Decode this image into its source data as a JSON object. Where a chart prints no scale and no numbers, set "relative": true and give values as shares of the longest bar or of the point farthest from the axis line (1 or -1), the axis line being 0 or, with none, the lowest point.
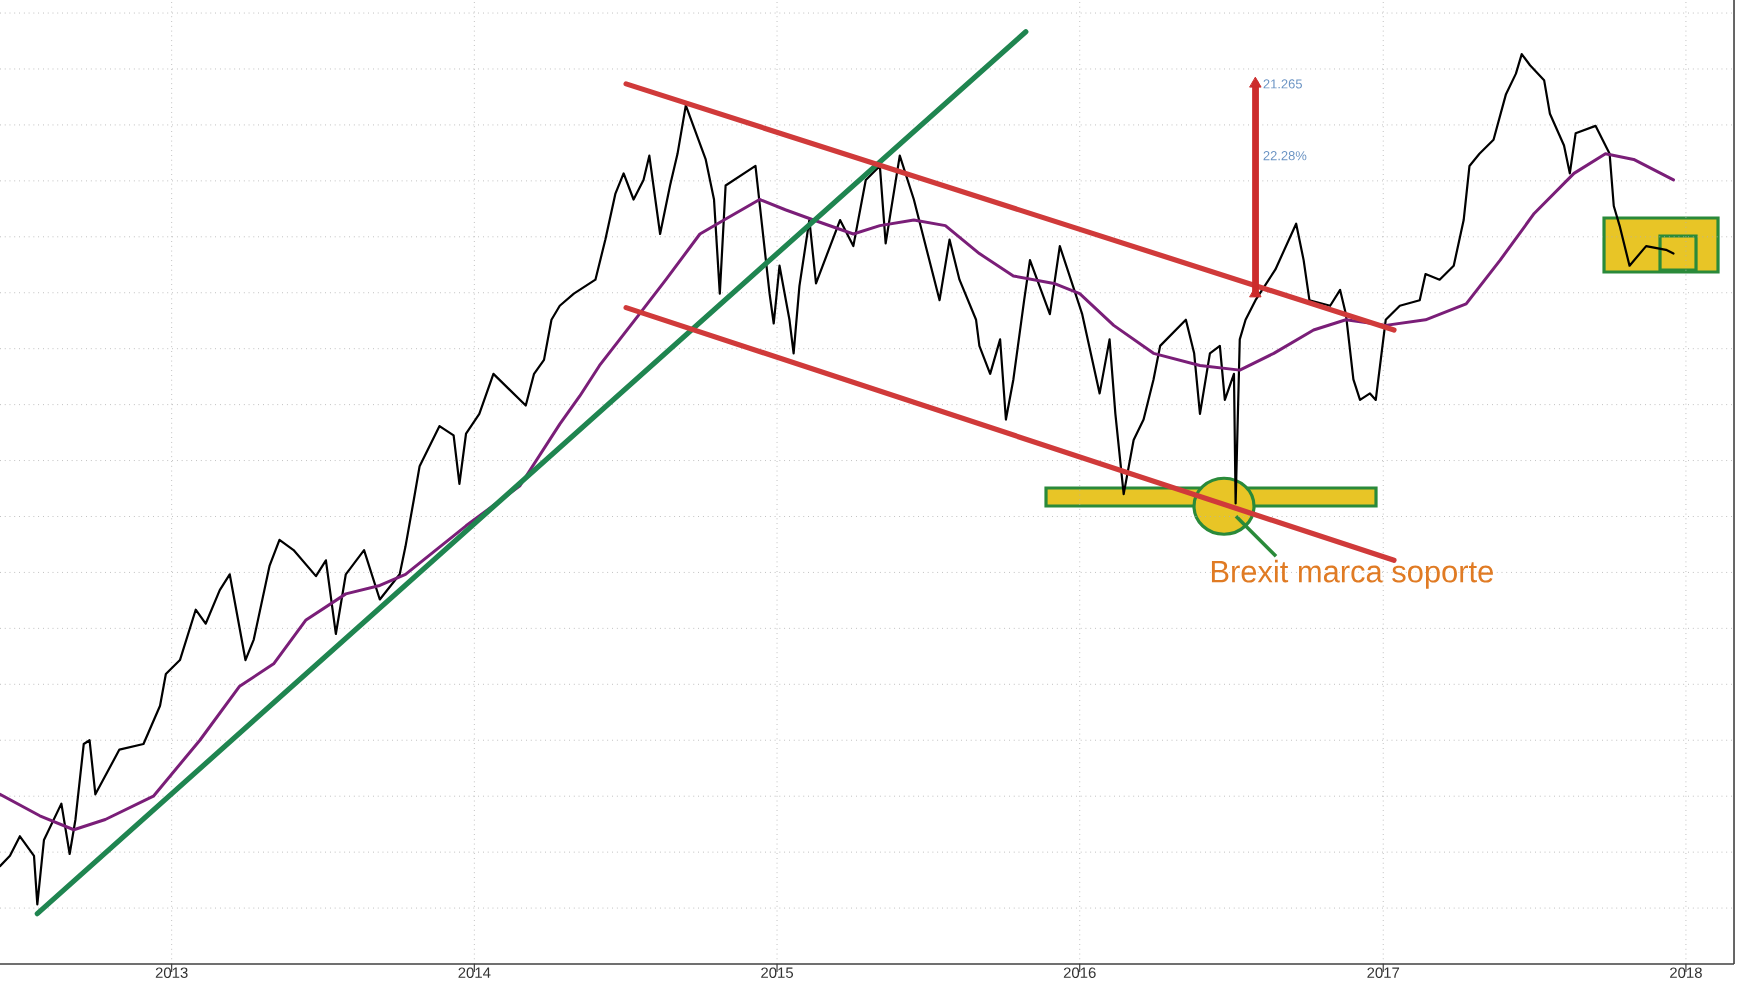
{
  "chart_data": {
    "type": "line",
    "relative": true,
    "xlim": [
      "2012-06-08",
      "2018-02-28"
    ],
    "xticks": [
      "2013",
      "2014",
      "2015",
      "2016",
      "2017",
      "2018"
    ],
    "grid": true,
    "annotations": [
      {
        "text": "21.265",
        "x": "2016-07-31",
        "y": 0.944
      },
      {
        "text": "22.28%",
        "x": "2016-07-31",
        "y": 0.867
      },
      {
        "text": "Brexit marca soporte",
        "x": "2016-06-23",
        "y": 0.491
      }
    ],
    "series": [
      {
        "color": "#000000",
        "x": [
          "2012-06-08",
          "2012-06-20",
          "2012-07-02",
          "2012-07-19",
          "2012-07-23",
          "2012-07-31",
          "2012-08-21",
          "2012-08-31",
          "2012-09-07",
          "2012-09-17",
          "2012-09-24",
          "2012-10-01",
          "2012-10-30",
          "2012-11-28",
          "2012-12-18",
          "2012-12-25",
          "2013-01-11",
          "2013-01-30",
          "2013-02-11",
          "2013-02-28",
          "2013-03-12",
          "2013-03-31",
          "2013-04-10",
          "2013-04-29",
          "2013-05-11",
          "2013-05-28",
          "2013-06-24",
          "2013-07-06",
          "2013-07-18",
          "2013-07-30",
          "2013-08-21",
          "2013-09-09",
          "2013-10-03",
          "2013-10-10",
          "2013-10-20",
          "2013-10-27",
          "2013-11-20",
          "2013-12-07",
          "2013-12-14",
          "2013-12-22",
          "2014-01-07",
          "2014-01-24",
          "2014-03-04",
          "2014-03-14",
          "2014-03-26",
          "2014-04-04",
          "2014-04-14",
          "2014-05-01",
          "2014-05-27",
          "2014-06-08",
          "2014-06-20",
          "2014-06-30",
          "2014-07-12",
          "2014-07-24",
          "2014-07-31",
          "2014-08-13",
          "2014-08-25",
          "2014-09-03",
          "2014-09-13",
          "2014-10-07",
          "2014-10-17",
          "2014-10-24",
          "2014-10-31",
          "2014-12-06",
          "2014-12-23",
          "2014-12-28",
          "2015-01-04",
          "2015-01-16",
          "2015-01-21",
          "2015-01-28",
          "2015-02-09",
          "2015-02-17",
          "2015-03-18",
          "2015-04-03",
          "2015-04-18",
          "2015-05-05",
          "2015-05-12",
          "2015-05-29",
          "2015-06-15",
          "2015-07-16",
          "2015-07-28",
          "2015-08-09",
          "2015-08-29",
          "2015-09-02",
          "2015-09-15",
          "2015-09-27",
          "2015-10-04",
          "2015-10-13",
          "2015-10-26",
          "2015-11-02",
          "2015-11-26",
          "2015-12-08",
          "2016-01-04",
          "2016-01-25",
          "2016-02-06",
          "2016-02-13",
          "2016-02-23",
          "2016-03-06",
          "2016-03-18",
          "2016-03-30",
          "2016-04-07",
          "2016-05-08",
          "2016-05-18",
          "2016-05-25",
          "2016-06-06",
          "2016-06-18",
          "2016-06-24",
          "2016-07-05",
          "2016-07-07",
          "2016-07-12",
          "2016-07-19",
          "2016-07-31",
          "2016-08-24",
          "2016-09-18",
          "2016-09-27",
          "2016-10-04",
          "2016-10-29",
          "2016-11-10",
          "2016-11-17",
          "2016-11-26",
          "2016-12-04",
          "2016-12-16",
          "2016-12-23",
          "2017-01-04",
          "2017-01-21",
          "2017-02-14",
          "2017-02-21",
          "2017-03-10",
          "2017-03-27",
          "2017-04-08",
          "2017-04-15",
          "2017-04-27",
          "2017-05-14",
          "2017-05-29",
          "2017-06-10",
          "2017-06-17",
          "2017-06-27",
          "2017-07-14",
          "2017-07-21",
          "2017-08-07",
          "2017-08-14",
          "2017-08-21",
          "2017-09-14",
          "2017-10-01",
          "2017-10-06",
          "2017-10-13",
          "2017-10-25",
          "2017-11-14",
          "2017-12-08",
          "2017-12-17"
        ],
        "values": [
          0.105,
          0.116,
          0.137,
          0.116,
          0.064,
          0.133,
          0.172,
          0.118,
          0.155,
          0.236,
          0.24,
          0.182,
          0.23,
          0.236,
          0.277,
          0.311,
          0.326,
          0.38,
          0.365,
          0.401,
          0.418,
          0.326,
          0.348,
          0.427,
          0.455,
          0.444,
          0.416,
          0.433,
          0.354,
          0.418,
          0.444,
          0.391,
          0.418,
          0.448,
          0.498,
          0.534,
          0.577,
          0.567,
          0.515,
          0.569,
          0.59,
          0.633,
          0.599,
          0.633,
          0.648,
          0.691,
          0.706,
          0.719,
          0.734,
          0.777,
          0.826,
          0.848,
          0.82,
          0.841,
          0.867,
          0.783,
          0.835,
          0.869,
          0.921,
          0.863,
          0.82,
          0.719,
          0.835,
          0.856,
          0.719,
          0.687,
          0.749,
          0.691,
          0.655,
          0.727,
          0.798,
          0.73,
          0.798,
          0.77,
          0.841,
          0.856,
          0.773,
          0.867,
          0.82,
          0.712,
          0.777,
          0.734,
          0.691,
          0.663,
          0.633,
          0.67,
          0.584,
          0.627,
          0.712,
          0.755,
          0.697,
          0.77,
          0.697,
          0.612,
          0.67,
          0.59,
          0.504,
          0.562,
          0.584,
          0.627,
          0.663,
          0.691,
          0.655,
          0.59,
          0.655,
          0.663,
          0.605,
          0.633,
          0.494,
          0.67,
          0.691,
          0.712,
          0.745,
          0.794,
          0.755,
          0.712,
          0.706,
          0.723,
          0.697,
          0.627,
          0.605,
          0.612,
          0.605,
          0.691,
          0.706,
          0.712,
          0.74,
          0.734,
          0.749,
          0.798,
          0.856,
          0.869,
          0.884,
          0.933,
          0.955,
          0.976,
          0.964,
          0.948,
          0.912,
          0.878,
          0.848,
          0.891,
          0.899,
          0.869,
          0.813,
          0.792,
          0.749,
          0.77,
          0.766,
          0.762
        ]
      },
      {
        "color": "#7a1e78",
        "x": [
          "2012-06-08",
          "2012-07-26",
          "2012-09-05",
          "2012-10-13",
          "2012-12-10",
          "2013-02-04",
          "2013-03-24",
          "2013-05-04",
          "2013-06-12",
          "2013-07-30",
          "2013-09-09",
          "2013-10-10",
          "2013-12-22",
          "2014-02-25",
          "2014-04-14",
          "2014-05-08",
          "2014-06-01",
          "2014-07-19",
          "2014-08-20",
          "2014-09-30",
          "2014-10-29",
          "2014-12-11",
          "2015-01-11",
          "2015-02-14",
          "2015-04-03",
          "2015-05-05",
          "2015-06-15",
          "2015-07-23",
          "2015-09-02",
          "2015-10-13",
          "2015-12-01",
          "2016-01-01",
          "2016-02-11",
          "2016-03-30",
          "2016-05-25",
          "2016-07-12",
          "2016-08-22",
          "2016-10-09",
          "2016-11-17",
          "2017-01-04",
          "2017-02-21",
          "2017-04-11",
          "2017-05-22",
          "2017-07-02",
          "2017-08-19",
          "2017-09-26",
          "2017-10-30",
          "2017-12-17"
        ],
        "values": [
          0.182,
          0.159,
          0.144,
          0.155,
          0.18,
          0.24,
          0.298,
          0.322,
          0.369,
          0.397,
          0.406,
          0.418,
          0.47,
          0.513,
          0.579,
          0.609,
          0.642,
          0.697,
          0.734,
          0.783,
          0.798,
          0.82,
          0.809,
          0.798,
          0.783,
          0.792,
          0.798,
          0.792,
          0.762,
          0.738,
          0.73,
          0.719,
          0.685,
          0.655,
          0.642,
          0.637,
          0.655,
          0.68,
          0.691,
          0.685,
          0.691,
          0.708,
          0.755,
          0.805,
          0.848,
          0.869,
          0.863,
          0.841
        ]
      },
      {
        "color": "#1f8550",
        "x": [
          "2012-07-23",
          "2015-10-28"
        ],
        "values": [
          0.054,
          1.0
        ]
      },
      {
        "color": "#d03a3a",
        "x": [
          "2014-07-03",
          "2017-01-14"
        ],
        "values": [
          0.944,
          0.68
        ]
      },
      {
        "color": "#d03a3a",
        "x": [
          "2014-07-03",
          "2017-01-14"
        ],
        "values": [
          0.704,
          0.433
        ]
      },
      {
        "color": "#cc2b2b",
        "marker": "triangle",
        "x": [
          "2016-07-31",
          "2016-07-31"
        ],
        "values": [
          0.719,
          0.944
        ]
      }
    ]
  }
}
